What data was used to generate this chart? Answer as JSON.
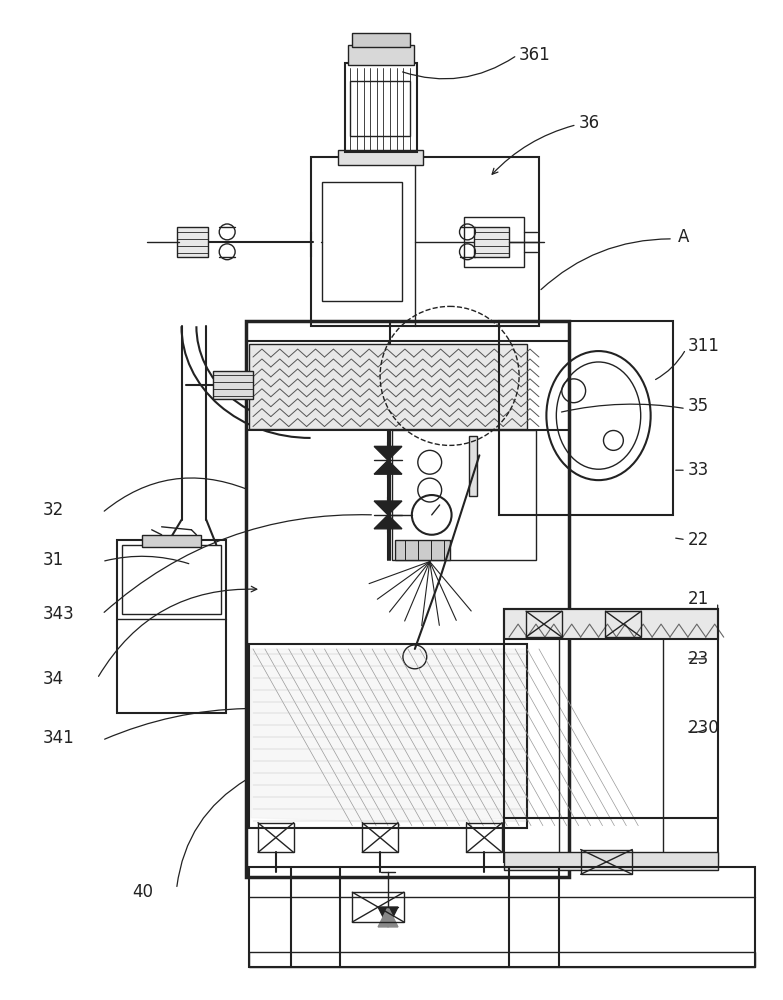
{
  "bg_color": "#ffffff",
  "lc": "#222222",
  "fs": 12,
  "fig_w": 7.83,
  "fig_h": 10.0,
  "dpi": 100
}
